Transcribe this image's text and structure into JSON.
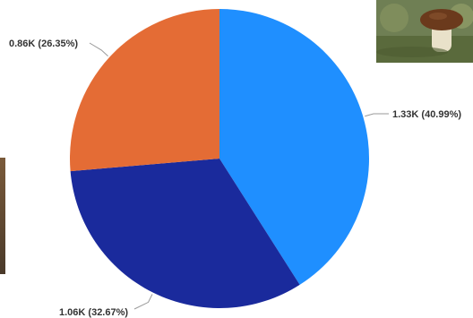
{
  "chart_data": {
    "type": "pie",
    "title": "",
    "slices": [
      {
        "label": "1.33K (40.99%)",
        "value": 1330,
        "percent": 40.99,
        "color": "#1f8fff"
      },
      {
        "label": "1.06K (32.67%)",
        "value": 1060,
        "percent": 32.67,
        "color": "#1a2a9c"
      },
      {
        "label": "0.86K (26.35%)",
        "value": 860,
        "percent": 26.35,
        "color": "#e46c35"
      }
    ],
    "legend": "none",
    "start_angle_deg": 0,
    "direction": "clockwise"
  },
  "decorations": {
    "photo_icon": "mushroom-photo-icon",
    "edge_icon": "cropped-photo-icon"
  }
}
